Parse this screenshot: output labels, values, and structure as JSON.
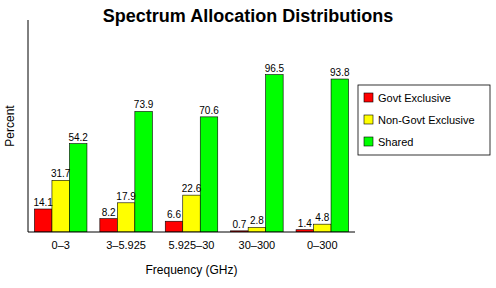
{
  "chart_data": {
    "type": "bar",
    "title": "Spectrum Allocation Distributions",
    "x_label": "Frequency (GHz)",
    "y_label": "Percent",
    "categories": [
      "0–3",
      "3–5.925",
      "5.925–30",
      "30–300",
      "0–300"
    ],
    "series": [
      {
        "name": "Govt Exclusive",
        "color": "#ff0000",
        "values": [
          14.1,
          8.2,
          6.6,
          0.7,
          1.4
        ]
      },
      {
        "name": "Non-Govt Exclusive",
        "color": "#ffff00",
        "values": [
          31.7,
          17.9,
          22.6,
          2.8,
          4.8
        ]
      },
      {
        "name": "Shared",
        "color": "#00ff00",
        "values": [
          54.2,
          73.9,
          70.6,
          96.5,
          93.8
        ]
      }
    ],
    "ylim": [
      0,
      130
    ],
    "yticks": [],
    "tick_labels": "x",
    "data_labels": true,
    "legend": "right",
    "grid": false
  }
}
